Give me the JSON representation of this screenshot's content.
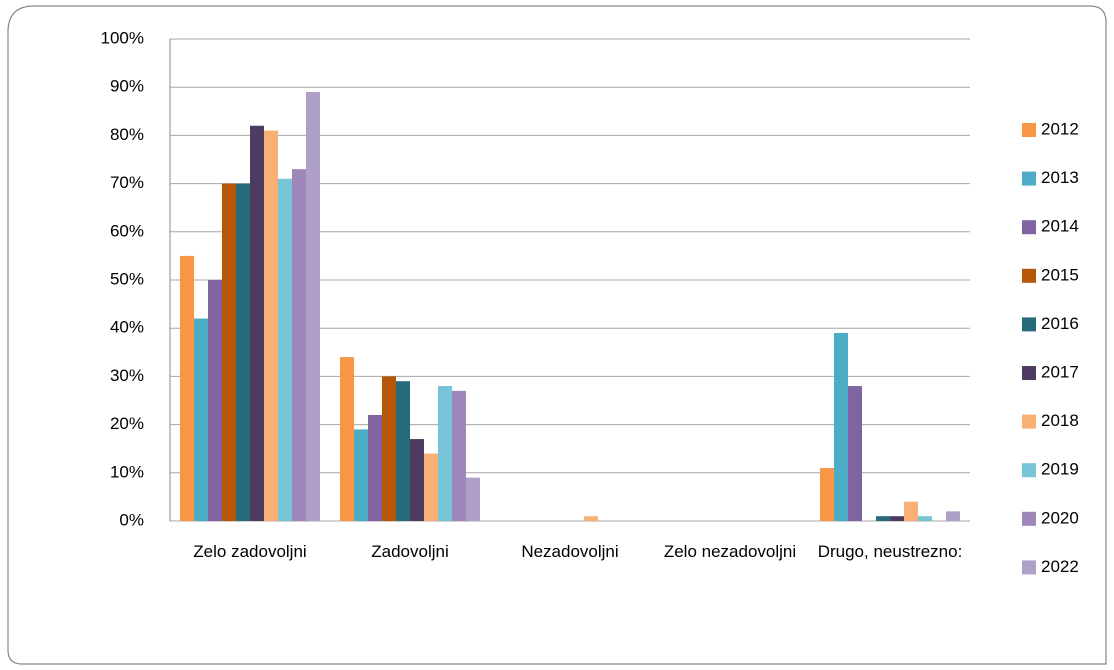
{
  "chart_data": {
    "type": "bar",
    "categories": [
      "Zelo zadovoljni",
      "Zadovoljni",
      "Nezadovoljni",
      "Zelo nezadovoljni",
      "Drugo, neustrezno:"
    ],
    "series": [
      {
        "name": "2012",
        "color": "#f79646",
        "values": [
          55,
          34,
          0,
          0,
          11
        ]
      },
      {
        "name": "2013",
        "color": "#4bacc6",
        "values": [
          42,
          19,
          0,
          0,
          39
        ]
      },
      {
        "name": "2014",
        "color": "#8064a2",
        "values": [
          50,
          22,
          0,
          0,
          28
        ]
      },
      {
        "name": "2015",
        "color": "#b65708",
        "values": [
          70,
          30,
          0,
          0,
          0
        ]
      },
      {
        "name": "2016",
        "color": "#276a7c",
        "values": [
          70,
          29,
          0,
          0,
          1
        ]
      },
      {
        "name": "2017",
        "color": "#4d3b62",
        "values": [
          82,
          17,
          0,
          0,
          1
        ]
      },
      {
        "name": "2018",
        "color": "#f9b074",
        "values": [
          81,
          14,
          1,
          0,
          4
        ]
      },
      {
        "name": "2019",
        "color": "#78c3d6",
        "values": [
          71,
          28,
          0,
          0,
          1
        ]
      },
      {
        "name": "2020",
        "color": "#9f87ba",
        "values": [
          73,
          27,
          0,
          0,
          0
        ]
      },
      {
        "name": "2022",
        "color": "#aea0c6",
        "values": [
          89,
          9,
          0,
          0,
          2
        ]
      }
    ],
    "ylim": [
      0,
      100
    ],
    "yticks": [
      {
        "value": 0,
        "label": "0%"
      },
      {
        "value": 10,
        "label": "10%"
      },
      {
        "value": 20,
        "label": "20%"
      },
      {
        "value": 30,
        "label": "30%"
      },
      {
        "value": 40,
        "label": "40%"
      },
      {
        "value": 50,
        "label": "50%"
      },
      {
        "value": 60,
        "label": "60%"
      },
      {
        "value": 70,
        "label": "70%"
      },
      {
        "value": 80,
        "label": "80%"
      },
      {
        "value": 90,
        "label": "90%"
      },
      {
        "value": 100,
        "label": "100%"
      }
    ],
    "grid": true,
    "legend": "right"
  }
}
